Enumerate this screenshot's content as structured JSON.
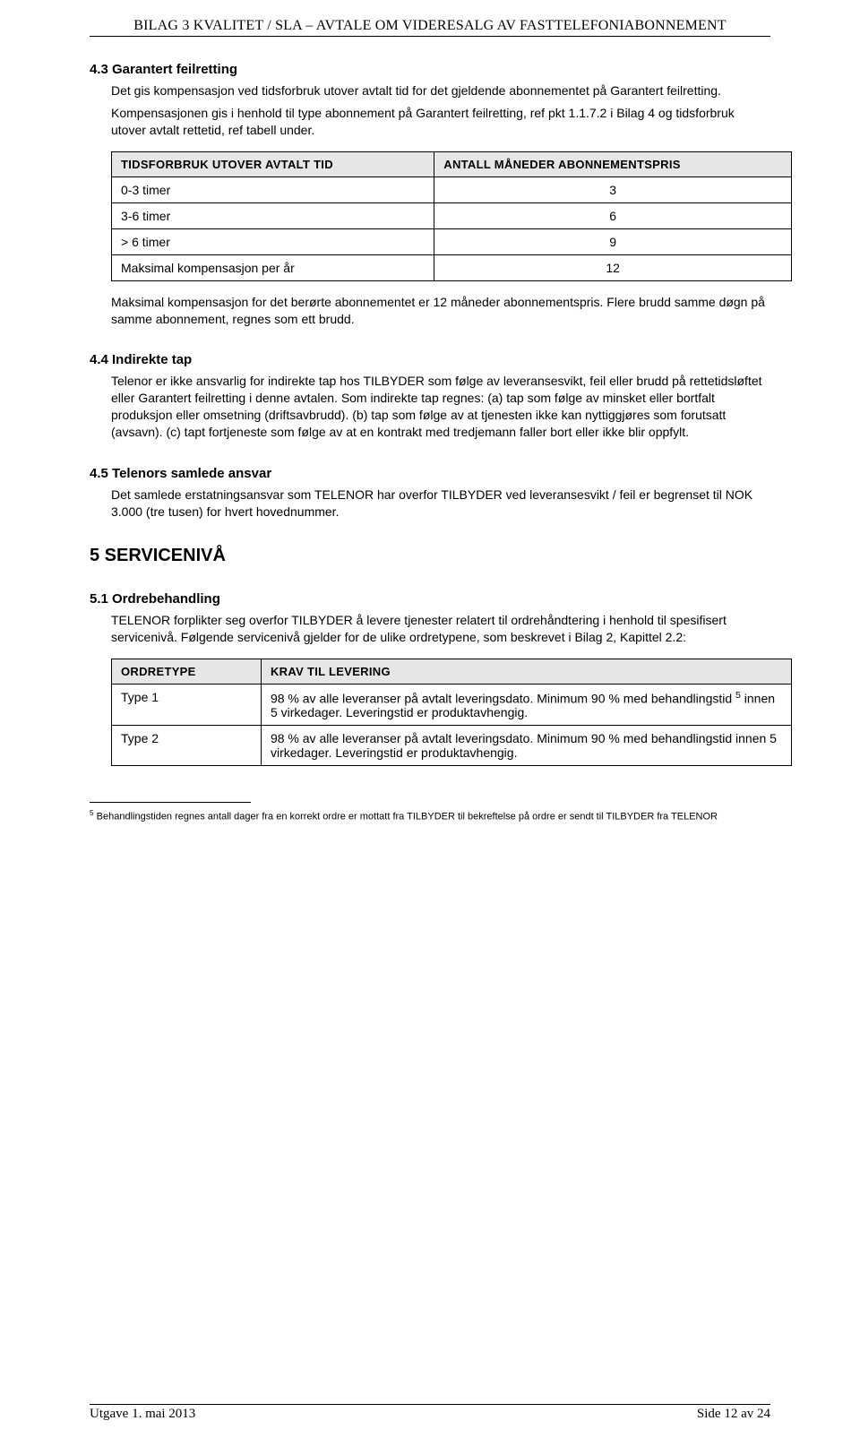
{
  "header": "BILAG 3 KVALITET / SLA – AVTALE OM VIDERESALG AV FASTTELEFONIABONNEMENT",
  "sec43": {
    "title": "4.3 Garantert feilretting",
    "p1": "Det gis kompensasjon ved tidsforbruk utover avtalt tid for det gjeldende abonnementet på Garantert feilretting.",
    "p2": "Kompensasjonen gis i henhold til type abonnement på Garantert feilretting, ref pkt 1.1.7.2 i Bilag 4 og tidsforbruk utover avtalt rettetid, ref tabell under.",
    "table": {
      "head_left": "TIDSFORBRUK UTOVER AVTALT TID",
      "head_right": "ANTALL MÅNEDER ABONNEMENTSPRIS",
      "rows": [
        {
          "c1": "0-3 timer",
          "c2": "3"
        },
        {
          "c1": "3-6 timer",
          "c2": "6"
        },
        {
          "c1": "> 6 timer",
          "c2": "9"
        },
        {
          "c1": "Maksimal kompensasjon per år",
          "c2": "12"
        }
      ]
    },
    "p3": "Maksimal kompensasjon for det berørte abonnementet er 12 måneder abonnements­pris. Flere brudd samme døgn på samme abonnement, regnes som ett brudd."
  },
  "sec44": {
    "title": "4.4 Indirekte tap",
    "p": "Telenor er ikke ansvarlig for indirekte tap hos TILBYDER som følge av leveransesvikt, feil eller brudd på rettetidsløftet eller Garantert feilretting i denne avtalen. Som indirekte tap regnes: (a) tap som følge av minsket eller bortfalt produksjon eller omsetning (driftsavbrudd). (b) tap som følge av at tjenesten ikke kan nyttiggjøres som forutsatt (avsavn). (c) tapt fortjeneste som følge av at en kontrakt med tredjemann faller bort eller ikke blir oppfylt."
  },
  "sec45": {
    "title": "4.5 Telenors samlede ansvar",
    "p": "Det samlede erstatningsansvar som TELENOR har overfor TILBYDER ved leveransesvikt / feil er begrenset til NOK 3.000 (tre tusen) for hvert hovednummer."
  },
  "chap5": {
    "title": "5  SERVICENIVÅ"
  },
  "sec51": {
    "title": "5.1  Ordrebehandling",
    "p": "TELENOR forplikter seg overfor TILBYDER å levere tjenester relatert til ordrehåndtering i henhold til spesifisert servicenivå. Følgende servicenivå gjelder for de ulike ordretypene, som beskrevet i Bilag 2, Kapittel 2.2:",
    "table": {
      "head_left": "ORDRETYPE",
      "head_right": "KRAV TIL LEVERING",
      "rows": [
        {
          "c1": "Type 1",
          "c2_a": "98 % av alle leveranser på avtalt leveringsdato. Minimum 90 % med behandlingstid ",
          "c2_sup": "5",
          "c2_b": " innen 5 virkedager. Leveringstid er produktavhengig."
        },
        {
          "c1": "Type 2",
          "c2_a": "98 % av alle leveranser på avtalt leveringsdato. Minimum 90 % med behandlingstid innen 5 virkedager. Leveringstid er produktavhengig.",
          "c2_sup": "",
          "c2_b": ""
        }
      ]
    }
  },
  "footnote": {
    "marker": "5",
    "text": " Behandlingstiden regnes antall dager fra en korrekt ordre er mottatt fra TILBYDER til bekreftelse på ordre er sendt til TILBYDER fra TELENOR"
  },
  "footer": {
    "left": "Utgave 1. mai 2013",
    "right": "Side 12 av 24"
  }
}
